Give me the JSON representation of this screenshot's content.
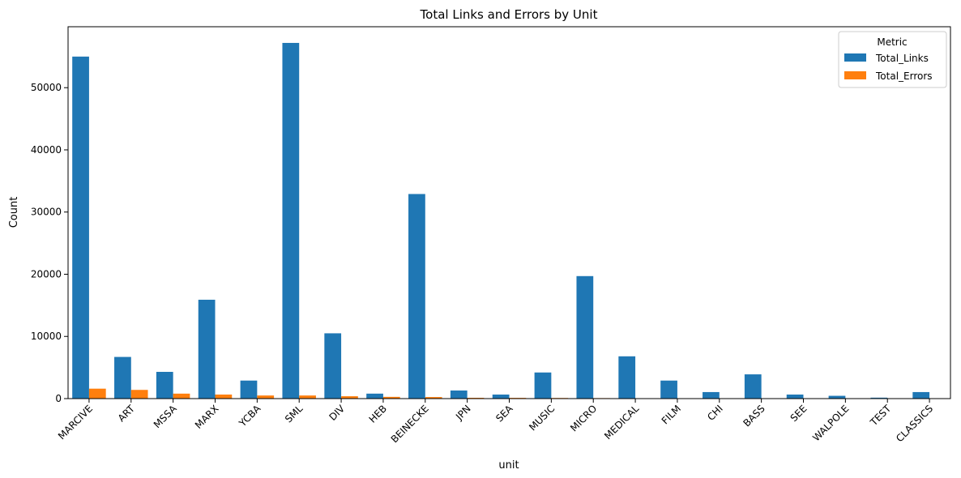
{
  "chart_data": {
    "type": "bar",
    "title": "Total Links and Errors by Unit",
    "xlabel": "unit",
    "ylabel": "Count",
    "ylim": [
      0,
      59800
    ],
    "yticks": [
      0,
      10000,
      20000,
      30000,
      40000,
      50000
    ],
    "grid": false,
    "legend": {
      "title": "Metric",
      "placement": "top-right"
    },
    "categories": [
      "MARCIVE",
      "ART",
      "MSSA",
      "MARX",
      "YCBA",
      "SML",
      "DIV",
      "HEB",
      "BEINECKE",
      "JPN",
      "SEA",
      "MUSIC",
      "MICRO",
      "MEDICAL",
      "FILM",
      "CHI",
      "BASS",
      "SEE",
      "WALPOLE",
      "TEST",
      "CLASSICS"
    ],
    "series": [
      {
        "name": "Total_Links",
        "color": "#1f77b4",
        "values": [
          55000,
          6700,
          4300,
          15900,
          2900,
          57200,
          10500,
          800,
          32900,
          1300,
          650,
          4200,
          19700,
          6800,
          2900,
          1050,
          3900,
          650,
          450,
          150,
          1050
        ]
      },
      {
        "name": "Total_Errors",
        "color": "#ff7f0e",
        "values": [
          1600,
          1400,
          800,
          650,
          500,
          500,
          380,
          280,
          250,
          130,
          120,
          100,
          80,
          60,
          30,
          20,
          15,
          10,
          5,
          3,
          2
        ]
      }
    ]
  }
}
